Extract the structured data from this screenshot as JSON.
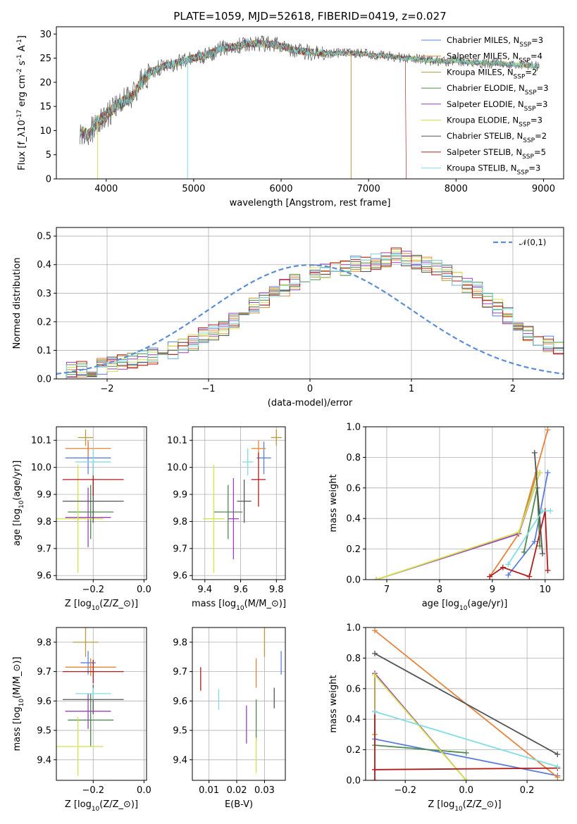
{
  "title": "PLATE=1059, MJD=52618, FIBERID=0419, z=0.027",
  "series": [
    {
      "name": "Chabrier MILES, N$_{SSP}$=3",
      "color": "#5b7fd8"
    },
    {
      "name": "Salpeter MILES, N$_{SSP}$=4",
      "color": "#e8833a"
    },
    {
      "name": "Kroupa MILES, N$_{SSP}$=2",
      "color": "#b89a3c"
    },
    {
      "name": "Chabrier ELODIE, N$_{SSP}$=3",
      "color": "#4d8a4d"
    },
    {
      "name": "Salpeter ELODIE, N$_{SSP}$=3",
      "color": "#9b3fbd"
    },
    {
      "name": "Kroupa ELODIE, N$_{SSP}$=3",
      "color": "#d4e34a"
    },
    {
      "name": "Chabrier STELIB, N$_{SSP}$=2",
      "color": "#555555"
    },
    {
      "name": "Salpeter STELIB, N$_{SSP}$=5",
      "color": "#b31b1b"
    },
    {
      "name": "Kroupa STELIB, N$_{SSP}$=3",
      "color": "#7fdde3"
    }
  ],
  "chart_data": [
    {
      "id": "spectrum",
      "type": "line",
      "title": "PLATE=1059, MJD=52618, FIBERID=0419, z=0.027",
      "xlabel": "wavelength [Angstrom, rest frame]",
      "ylabel": "Flux [f$_\\lambda$10$^{-17}$ erg cm$^{-2}$ s$^{-1}$ A$^{-1}$]",
      "xlim": [
        3430,
        9230
      ],
      "ylim": [
        0,
        31.5
      ],
      "xticks": [
        4000,
        5000,
        6000,
        7000,
        8000,
        9000
      ],
      "yticks": [
        0,
        5,
        10,
        15,
        20,
        25,
        30
      ],
      "grid": false,
      "legend": "top-right",
      "continuum": [
        [
          3700,
          10
        ],
        [
          3800,
          9
        ],
        [
          3900,
          12
        ],
        [
          4000,
          13
        ],
        [
          4100,
          15
        ],
        [
          4200,
          16
        ],
        [
          4300,
          17
        ],
        [
          4400,
          20
        ],
        [
          4500,
          22
        ],
        [
          4600,
          23
        ],
        [
          4700,
          23.5
        ],
        [
          4800,
          24
        ],
        [
          4900,
          24.5
        ],
        [
          5000,
          25
        ],
        [
          5100,
          25.5
        ],
        [
          5200,
          26
        ],
        [
          5300,
          27
        ],
        [
          5400,
          27.2
        ],
        [
          5500,
          27.5
        ],
        [
          5600,
          28
        ],
        [
          5700,
          28
        ],
        [
          5800,
          28
        ],
        [
          5900,
          27.8
        ],
        [
          6000,
          27.5
        ],
        [
          6100,
          27
        ],
        [
          6200,
          26.5
        ],
        [
          6300,
          26.3
        ],
        [
          6400,
          26.2
        ],
        [
          6500,
          26
        ],
        [
          6600,
          26
        ],
        [
          6700,
          26
        ],
        [
          6800,
          26
        ],
        [
          6900,
          26
        ],
        [
          7000,
          25.8
        ],
        [
          7100,
          25.5
        ],
        [
          7200,
          25.5
        ],
        [
          7300,
          25.3
        ],
        [
          7400,
          25
        ],
        [
          7500,
          25
        ],
        [
          7600,
          24.7
        ],
        [
          7700,
          24.5
        ],
        [
          7800,
          24.5
        ],
        [
          7900,
          24.3
        ],
        [
          8000,
          24.5
        ],
        [
          8200,
          24
        ],
        [
          8400,
          24
        ],
        [
          8600,
          23.8
        ],
        [
          8800,
          23.5
        ],
        [
          8950,
          23.3
        ]
      ]
    },
    {
      "id": "residuals",
      "type": "histogram",
      "xlabel": "(data-model)/error",
      "ylabel": "Normed distribution",
      "xlim": [
        -2.5,
        2.5
      ],
      "ylim": [
        0,
        0.53
      ],
      "xticks": [
        -2,
        -1,
        0,
        1,
        2
      ],
      "yticks": [
        0.0,
        0.1,
        0.2,
        0.3,
        0.4,
        0.5
      ],
      "grid": true,
      "legend": "top-right",
      "reference_label": "$\\mathcal{N}(0,1)$",
      "bin_width": 0.1,
      "bins_left_edge": -2.5,
      "heights": [
        0.025,
        0.03,
        0.035,
        0.035,
        0.045,
        0.05,
        0.06,
        0.065,
        0.07,
        0.08,
        0.09,
        0.1,
        0.11,
        0.13,
        0.15,
        0.16,
        0.18,
        0.2,
        0.23,
        0.26,
        0.28,
        0.3,
        0.32,
        0.34,
        0.36,
        0.37,
        0.38,
        0.385,
        0.39,
        0.4,
        0.4,
        0.41,
        0.42,
        0.43,
        0.42,
        0.41,
        0.4,
        0.39,
        0.37,
        0.35,
        0.33,
        0.31,
        0.28,
        0.25,
        0.22,
        0.19,
        0.16,
        0.14,
        0.12,
        0.1
      ]
    },
    {
      "id": "age-vs-Z",
      "type": "scatter",
      "xlabel": "Z [log$_{10}$($Z/Z_\\odot$)]",
      "ylabel": "age  [log$_{10}$($age/yr$)]",
      "xlim": [
        -0.345,
        0.01
      ],
      "ylim": [
        9.585,
        10.15
      ],
      "xticks": [
        -0.2,
        0.0
      ],
      "xticklabels": [
        "−0.2",
        "0.0"
      ],
      "yticks": [
        9.6,
        9.7,
        9.8,
        9.9,
        10.0,
        10.1
      ],
      "grid": true,
      "points": [
        {
          "s": 0,
          "x": -0.22,
          "y": 10.035,
          "xe": 0.09,
          "ye": 0.06
        },
        {
          "s": 1,
          "x": -0.22,
          "y": 10.07,
          "xe": 0.09,
          "ye": 0.03
        },
        {
          "s": 2,
          "x": -0.23,
          "y": 10.11,
          "xe": 0.03,
          "ye": 0.03
        },
        {
          "s": 3,
          "x": -0.21,
          "y": 9.835,
          "xe": 0.09,
          "ye": 0.1
        },
        {
          "s": 4,
          "x": -0.22,
          "y": 9.815,
          "xe": 0.09,
          "ye": 0.11
        },
        {
          "s": 5,
          "x": -0.26,
          "y": 9.81,
          "xe": 0.1,
          "ye": 0.2
        },
        {
          "s": 6,
          "x": -0.2,
          "y": 9.875,
          "xe": 0.12,
          "ye": 0.08
        },
        {
          "s": 7,
          "x": -0.2,
          "y": 9.955,
          "xe": 0.12,
          "ye": 0.06
        },
        {
          "s": 8,
          "x": -0.2,
          "y": 10.02,
          "xe": 0.07,
          "ye": 0.05
        }
      ]
    },
    {
      "id": "age-vs-mass",
      "type": "scatter",
      "xlabel": "mass [log$_{10}$($M/M_\\odot$)]",
      "ylabel": "",
      "xlim": [
        9.33,
        9.85
      ],
      "ylim": [
        9.585,
        10.15
      ],
      "xticks": [
        9.4,
        9.6,
        9.8
      ],
      "yticks": [
        9.6,
        9.7,
        9.8,
        9.9,
        10.0,
        10.1
      ],
      "grid": true,
      "points": [
        {
          "s": 0,
          "x": 9.73,
          "y": 10.035,
          "xe": 0.04,
          "ye": 0.06
        },
        {
          "s": 1,
          "x": 9.7,
          "y": 10.07,
          "xe": 0.04,
          "ye": 0.03
        },
        {
          "s": 2,
          "x": 9.8,
          "y": 10.11,
          "xe": 0.03,
          "ye": 0.03
        },
        {
          "s": 3,
          "x": 9.53,
          "y": 9.835,
          "xe": 0.08,
          "ye": 0.1
        },
        {
          "s": 4,
          "x": 9.56,
          "y": 9.81,
          "xe": 0.03,
          "ye": 0.15
        },
        {
          "s": 5,
          "x": 9.45,
          "y": 9.81,
          "xe": 0.06,
          "ye": 0.2
        },
        {
          "s": 6,
          "x": 9.62,
          "y": 9.875,
          "xe": 0.04,
          "ye": 0.08
        },
        {
          "s": 7,
          "x": 9.7,
          "y": 9.955,
          "xe": 0.04,
          "ye": 0.1
        },
        {
          "s": 8,
          "x": 9.64,
          "y": 10.02,
          "xe": 0.03,
          "ye": 0.05
        }
      ]
    },
    {
      "id": "weight-vs-age",
      "type": "line",
      "xlabel": "age  [log$_{10}$($age/yr$)]",
      "ylabel": "mass weight",
      "xlim": [
        6.6,
        10.35
      ],
      "ylim": [
        0,
        1.0
      ],
      "xticks": [
        7,
        8,
        9,
        10
      ],
      "yticks": [
        0.0,
        0.2,
        0.4,
        0.6,
        0.8,
        1.0
      ],
      "grid": true,
      "lines": [
        {
          "s": 0,
          "pts": [
            [
              9.3,
              0.03
            ],
            [
              9.8,
              0.25
            ],
            [
              10.05,
              0.7
            ]
          ]
        },
        {
          "s": 1,
          "pts": [
            [
              8.95,
              0.02
            ],
            [
              9.5,
              0.3
            ],
            [
              10.05,
              0.98
            ]
          ]
        },
        {
          "s": 2,
          "pts": [
            [
              9.5,
              0.3
            ],
            [
              9.85,
              0.7
            ]
          ]
        },
        {
          "s": 3,
          "pts": [
            [
              9.6,
              0.18
            ],
            [
              9.85,
              0.6
            ],
            [
              9.9,
              0.22
            ]
          ]
        },
        {
          "s": 4,
          "pts": [
            [
              6.8,
              0.0
            ],
            [
              9.5,
              0.3
            ],
            [
              9.9,
              0.7
            ]
          ]
        },
        {
          "s": 5,
          "pts": [
            [
              6.8,
              0.0
            ],
            [
              9.5,
              0.31
            ],
            [
              9.9,
              0.7
            ]
          ]
        },
        {
          "s": 6,
          "pts": [
            [
              9.8,
              0.83
            ],
            [
              9.95,
              0.17
            ]
          ]
        },
        {
          "s": 7,
          "pts": [
            [
              8.95,
              0.02
            ],
            [
              9.2,
              0.08
            ],
            [
              9.7,
              0.02
            ],
            [
              10.0,
              0.45
            ],
            [
              10.05,
              0.06
            ]
          ]
        },
        {
          "s": 8,
          "pts": [
            [
              9.3,
              0.1
            ],
            [
              9.95,
              0.45
            ],
            [
              10.1,
              0.45
            ]
          ]
        }
      ]
    },
    {
      "id": "mass-vs-Z",
      "type": "scatter",
      "xlabel": "Z [log$_{10}$($Z/Z_\\odot$)]",
      "ylabel": "mass [log$_{10}$($M/M_\\odot$)]",
      "xlim": [
        -0.345,
        0.01
      ],
      "ylim": [
        9.33,
        9.85
      ],
      "xticks": [
        -0.2,
        0.0
      ],
      "xticklabels": [
        "−0.2",
        "0.0"
      ],
      "yticks": [
        9.4,
        9.5,
        9.6,
        9.7,
        9.8
      ],
      "grid": true,
      "points": [
        {
          "s": 0,
          "x": -0.22,
          "y": 9.73,
          "xe": 0.03,
          "ye": 0.04
        },
        {
          "s": 1,
          "x": -0.21,
          "y": 9.715,
          "xe": 0.1,
          "ye": 0.03
        },
        {
          "s": 2,
          "x": -0.23,
          "y": 9.8,
          "xe": 0.05,
          "ye": 0.05
        },
        {
          "s": 3,
          "x": -0.21,
          "y": 9.535,
          "xe": 0.09,
          "ye": 0.09
        },
        {
          "s": 4,
          "x": -0.22,
          "y": 9.565,
          "xe": 0.09,
          "ye": 0.06
        },
        {
          "s": 5,
          "x": -0.26,
          "y": 9.445,
          "xe": 0.1,
          "ye": 0.1
        },
        {
          "s": 6,
          "x": -0.2,
          "y": 9.605,
          "xe": 0.12,
          "ye": 0.05
        },
        {
          "s": 7,
          "x": -0.2,
          "y": 9.7,
          "xe": 0.12,
          "ye": 0.04
        },
        {
          "s": 8,
          "x": -0.2,
          "y": 9.625,
          "xe": 0.07,
          "ye": 0.02
        }
      ]
    },
    {
      "id": "mass-vs-EBV",
      "type": "scatter",
      "xlabel": "E(B-V)",
      "ylabel": "",
      "xlim": [
        0.004,
        0.0375
      ],
      "ylim": [
        9.33,
        9.85
      ],
      "xticks": [
        0.01,
        0.02,
        0.03
      ],
      "yticks": [
        9.4,
        9.5,
        9.6,
        9.7,
        9.8
      ],
      "grid": true,
      "points": [
        {
          "s": 0,
          "x": 0.036,
          "y": 9.73,
          "xe": 0,
          "ye": 0.04
        },
        {
          "s": 1,
          "x": 0.027,
          "y": 9.695,
          "xe": 0,
          "ye": 0.05
        },
        {
          "s": 2,
          "x": 0.03,
          "y": 9.8,
          "xe": 0,
          "ye": 0.05
        },
        {
          "s": 3,
          "x": 0.027,
          "y": 9.535,
          "xe": 0,
          "ye": 0.07
        },
        {
          "s": 4,
          "x": 0.0235,
          "y": 9.52,
          "xe": 0,
          "ye": 0.065
        },
        {
          "s": 5,
          "x": 0.027,
          "y": 9.415,
          "xe": 0,
          "ye": 0.06
        },
        {
          "s": 6,
          "x": 0.0335,
          "y": 9.61,
          "xe": 0,
          "ye": 0.035
        },
        {
          "s": 7,
          "x": 0.007,
          "y": 9.675,
          "xe": 0,
          "ye": 0.04
        },
        {
          "s": 8,
          "x": 0.0135,
          "y": 9.605,
          "xe": 0,
          "ye": 0.035
        }
      ]
    },
    {
      "id": "weight-vs-Z",
      "type": "line",
      "xlabel": "Z [log$_{10}$($Z/Z_\\odot$)]",
      "ylabel": "mass weight",
      "xlim": [
        -0.33,
        0.32
      ],
      "ylim": [
        0,
        1.0
      ],
      "xticks": [
        -0.2,
        0.0,
        0.2
      ],
      "xticklabels": [
        "−0.2",
        "0.0",
        "0.2"
      ],
      "yticks": [
        0.0,
        0.2,
        0.4,
        0.6,
        0.8,
        1.0
      ],
      "grid": true,
      "lines": [
        {
          "s": 0,
          "pts": [
            [
              -0.3,
              0.27
            ],
            [
              0.3,
              0.03
            ]
          ]
        },
        {
          "s": 1,
          "pts": [
            [
              -0.3,
              0.98
            ],
            [
              0.3,
              0.02
            ]
          ]
        },
        {
          "s": 2,
          "pts": [
            [
              -0.3,
              0.7
            ],
            [
              -0.3,
              0.3
            ]
          ]
        },
        {
          "s": 3,
          "pts": [
            [
              -0.3,
              0.23
            ],
            [
              0.0,
              0.18
            ]
          ]
        },
        {
          "s": 4,
          "pts": [
            [
              -0.3,
              0.7
            ],
            [
              0.0,
              0.0
            ]
          ]
        },
        {
          "s": 5,
          "pts": [
            [
              -0.3,
              0.69
            ],
            [
              0.0,
              0.0
            ]
          ]
        },
        {
          "s": 6,
          "pts": [
            [
              -0.3,
              0.83
            ],
            [
              0.3,
              0.17
            ]
          ]
        },
        {
          "s": 7,
          "pts": [
            [
              -0.3,
              0.0
            ],
            [
              -0.3,
              0.45
            ],
            [
              -0.3,
              0.07
            ],
            [
              0.3,
              0.08
            ]
          ]
        },
        {
          "s": 8,
          "pts": [
            [
              -0.3,
              0.45
            ],
            [
              0.3,
              0.09
            ]
          ]
        }
      ]
    }
  ]
}
